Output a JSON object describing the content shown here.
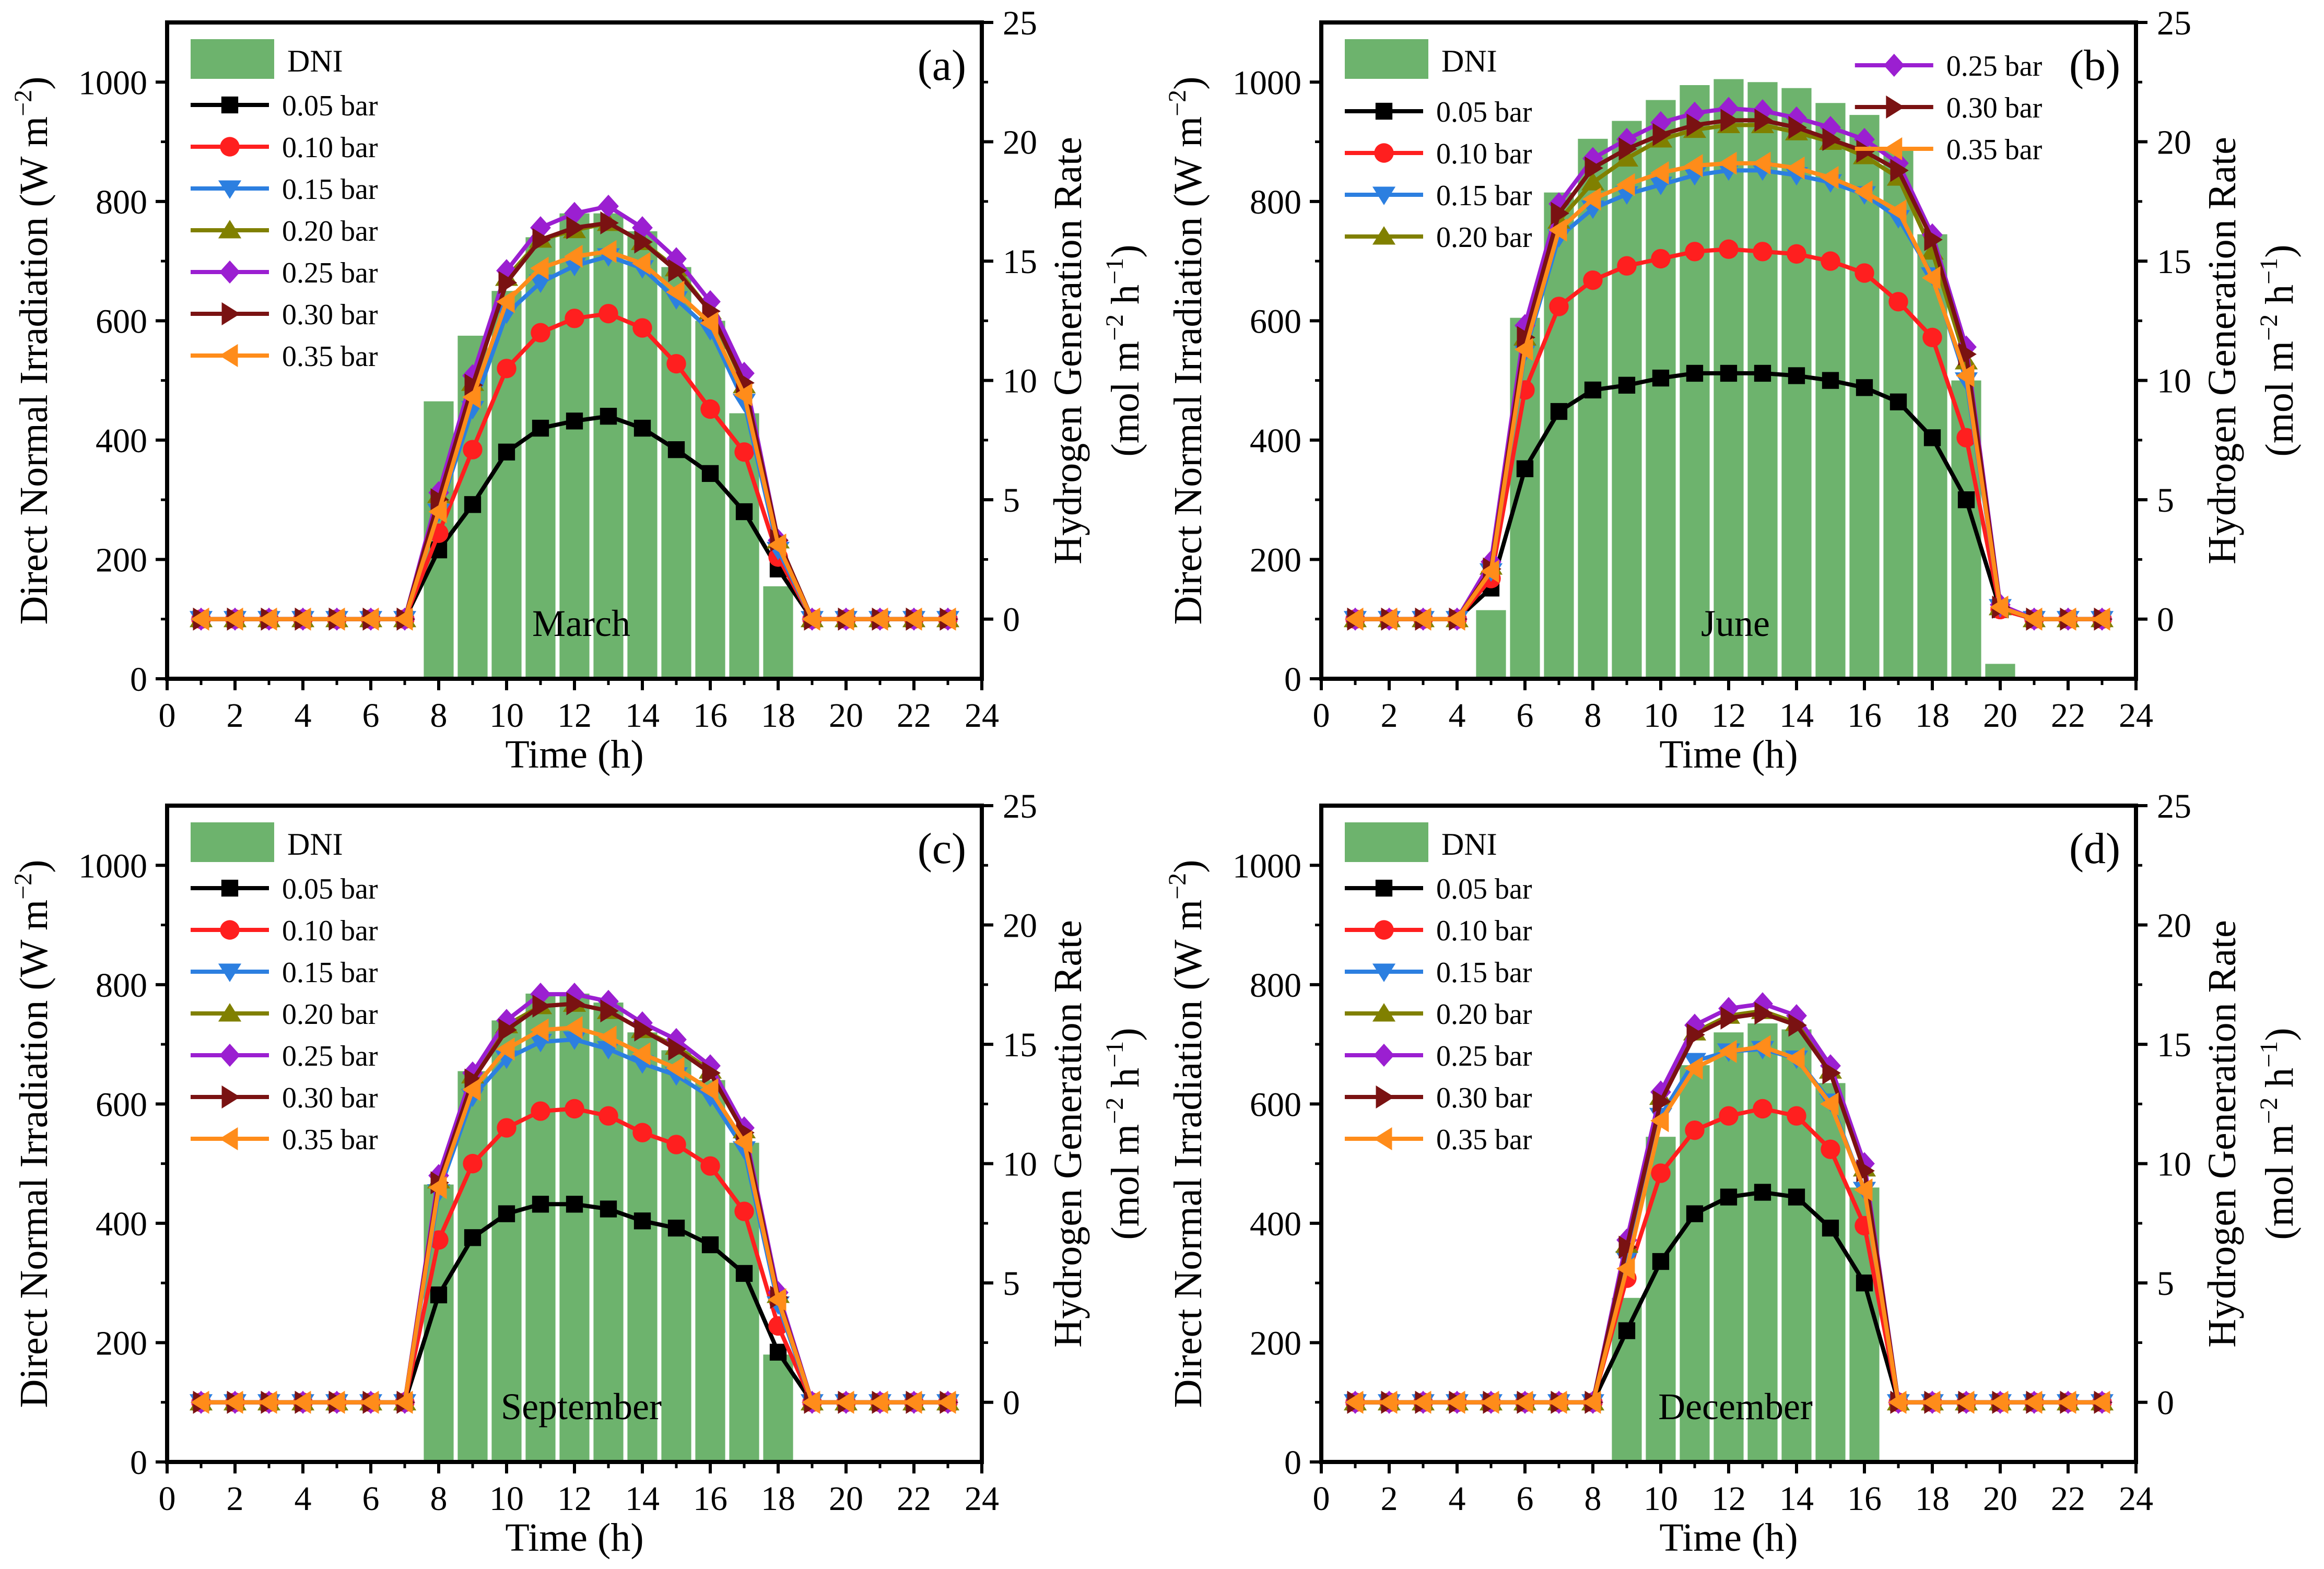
{
  "figure": {
    "x_label": "Time (h)",
    "y_label_left": "Direct Normal Irradiation (W m",
    "y_label_left_unit_exp": "−2",
    "y_label_left_close": ")",
    "y_label_right_line1": "Hydrogen Generation Rate",
    "y_label_right_line2_pre": "(mol m",
    "y_label_right_line2_exp1": "−2",
    "y_label_right_line2_mid": " h",
    "y_label_right_line2_exp2": "−1",
    "y_label_right_line2_post": ")"
  },
  "colors": {
    "dni_bar": "#6DB36D",
    "series": [
      "#000000",
      "#FF1F1F",
      "#2C7FE0",
      "#808000",
      "#9B1FD1",
      "#7A1212",
      "#FF8C1A"
    ]
  },
  "chart_data": [
    {
      "type": "bar+line",
      "panel": "(a)",
      "month": "March",
      "x_ticks": [
        0,
        2,
        4,
        6,
        8,
        10,
        12,
        14,
        16,
        18,
        20,
        22,
        24
      ],
      "xlim": [
        0,
        24
      ],
      "ylim_left": [
        0,
        1100
      ],
      "y_ticks_left": [
        0,
        200,
        400,
        600,
        800,
        1000
      ],
      "ylim_right": [
        -2.5,
        25
      ],
      "y_ticks_right": [
        0,
        5,
        10,
        15,
        20,
        25
      ],
      "dni": {
        "name": "DNI",
        "hours": [
          8,
          9,
          10,
          11,
          12,
          13,
          14,
          15,
          16,
          17,
          18
        ],
        "values": [
          465,
          575,
          650,
          740,
          780,
          780,
          750,
          690,
          600,
          445,
          155
        ]
      },
      "x": [
        1,
        2,
        3,
        4,
        5,
        6,
        7,
        8,
        9,
        10,
        11,
        12,
        13,
        14,
        15,
        16,
        17,
        18,
        19,
        20,
        21,
        22,
        23
      ],
      "series": [
        {
          "name": "0.05 bar",
          "marker": "square",
          "values": [
            0,
            0,
            0,
            0,
            0,
            0,
            0,
            2.9,
            4.8,
            7.0,
            8.0,
            8.3,
            8.5,
            8.0,
            7.1,
            6.1,
            4.5,
            2.1,
            0,
            0,
            0,
            0,
            0
          ]
        },
        {
          "name": "0.10 bar",
          "marker": "circle",
          "values": [
            0,
            0,
            0,
            0,
            0,
            0,
            0,
            3.6,
            7.1,
            10.5,
            12.0,
            12.6,
            12.8,
            12.2,
            10.7,
            8.8,
            7.0,
            2.6,
            0,
            0,
            0,
            0,
            0
          ]
        },
        {
          "name": "0.15 bar",
          "marker": "triangle-down",
          "values": [
            0,
            0,
            0,
            0,
            0,
            0,
            0,
            4.5,
            8.8,
            12.8,
            14.1,
            14.8,
            15.2,
            14.7,
            13.4,
            12.1,
            9.1,
            2.9,
            0,
            0,
            0,
            0,
            0
          ]
        },
        {
          "name": "0.20 bar",
          "marker": "triangle-up",
          "values": [
            0,
            0,
            0,
            0,
            0,
            0,
            0,
            5.2,
            9.9,
            14.3,
            15.9,
            16.3,
            16.6,
            15.8,
            14.7,
            12.9,
            9.8,
            3.3,
            0,
            0,
            0,
            0,
            0
          ]
        },
        {
          "name": "0.25 bar",
          "marker": "diamond",
          "values": [
            0,
            0,
            0,
            0,
            0,
            0,
            0,
            5.3,
            10.2,
            14.6,
            16.4,
            17.0,
            17.3,
            16.4,
            15.1,
            13.3,
            10.3,
            3.3,
            0,
            0,
            0,
            0,
            0
          ]
        },
        {
          "name": "0.30 bar",
          "marker": "triangle-right",
          "values": [
            0,
            0,
            0,
            0,
            0,
            0,
            0,
            5.0,
            9.8,
            14.1,
            15.9,
            16.4,
            16.6,
            15.8,
            14.6,
            12.9,
            9.9,
            3.3,
            0,
            0,
            0,
            0,
            0
          ]
        },
        {
          "name": "0.35 bar",
          "marker": "triangle-left",
          "values": [
            0,
            0,
            0,
            0,
            0,
            0,
            0,
            4.5,
            9.3,
            13.3,
            14.7,
            15.2,
            15.4,
            14.9,
            13.7,
            12.4,
            9.4,
            3.1,
            0,
            0,
            0,
            0,
            0
          ]
        }
      ]
    },
    {
      "type": "bar+line",
      "panel": "(b)",
      "month": "June",
      "x_ticks": [
        0,
        2,
        4,
        6,
        8,
        10,
        12,
        14,
        16,
        18,
        20,
        22,
        24
      ],
      "xlim": [
        0,
        24
      ],
      "ylim_left": [
        0,
        1100
      ],
      "y_ticks_left": [
        0,
        200,
        400,
        600,
        800,
        1000
      ],
      "ylim_right": [
        -2.5,
        25
      ],
      "y_ticks_right": [
        0,
        5,
        10,
        15,
        20,
        25
      ],
      "dni": {
        "name": "DNI",
        "hours": [
          5,
          6,
          7,
          8,
          9,
          10,
          11,
          12,
          13,
          14,
          15,
          16,
          17,
          18,
          19,
          20
        ],
        "values": [
          115,
          605,
          815,
          905,
          935,
          970,
          995,
          1005,
          1000,
          990,
          965,
          945,
          885,
          745,
          500,
          25
        ]
      },
      "x": [
        1,
        2,
        3,
        4,
        5,
        6,
        7,
        8,
        9,
        10,
        11,
        12,
        13,
        14,
        15,
        16,
        17,
        18,
        19,
        20,
        21,
        22,
        23
      ],
      "series": [
        {
          "name": "0.05 bar",
          "marker": "square",
          "values": [
            0,
            0,
            0,
            0,
            1.3,
            6.3,
            8.7,
            9.6,
            9.8,
            10.1,
            10.3,
            10.3,
            10.3,
            10.2,
            10.0,
            9.7,
            9.1,
            7.6,
            5.0,
            0.4,
            0,
            0,
            0
          ]
        },
        {
          "name": "0.10 bar",
          "marker": "circle",
          "values": [
            0,
            0,
            0,
            0,
            1.7,
            9.6,
            13.1,
            14.2,
            14.8,
            15.1,
            15.4,
            15.5,
            15.4,
            15.3,
            15.0,
            14.5,
            13.3,
            11.8,
            7.6,
            0.4,
            0,
            0,
            0
          ]
        },
        {
          "name": "0.15 bar",
          "marker": "triangle-down",
          "values": [
            0,
            0,
            0,
            0,
            2.0,
            11.2,
            16.0,
            17.2,
            17.8,
            18.2,
            18.6,
            18.8,
            18.8,
            18.6,
            18.3,
            17.8,
            16.8,
            14.4,
            10.0,
            0.5,
            0,
            0,
            0
          ]
        },
        {
          "name": "0.20 bar",
          "marker": "triangle-up",
          "values": [
            0,
            0,
            0,
            0,
            2.2,
            11.8,
            16.7,
            18.3,
            19.3,
            20.1,
            20.5,
            20.7,
            20.7,
            20.4,
            20.0,
            19.4,
            18.5,
            15.4,
            10.8,
            0.5,
            0,
            0,
            0
          ]
        },
        {
          "name": "0.25 bar",
          "marker": "diamond",
          "values": [
            0,
            0,
            0,
            0,
            2.4,
            12.3,
            17.4,
            19.3,
            20.1,
            20.8,
            21.2,
            21.4,
            21.3,
            21.0,
            20.6,
            20.1,
            19.1,
            16.1,
            11.4,
            0.6,
            0,
            0,
            0
          ]
        },
        {
          "name": "0.30 bar",
          "marker": "triangle-right",
          "values": [
            0,
            0,
            0,
            0,
            2.1,
            11.8,
            17.0,
            18.9,
            19.7,
            20.3,
            20.7,
            20.9,
            20.9,
            20.6,
            20.1,
            19.6,
            18.8,
            15.9,
            11.1,
            0.5,
            0,
            0,
            0
          ]
        },
        {
          "name": "0.35 bar",
          "marker": "triangle-left",
          "values": [
            0,
            0,
            0,
            0,
            2.0,
            11.3,
            16.3,
            17.6,
            18.2,
            18.7,
            19.0,
            19.1,
            19.1,
            18.9,
            18.5,
            17.9,
            17.1,
            14.3,
            10.2,
            0.5,
            0,
            0,
            0
          ]
        }
      ]
    },
    {
      "type": "bar+line",
      "panel": "(c)",
      "month": "September",
      "x_ticks": [
        0,
        2,
        4,
        6,
        8,
        10,
        12,
        14,
        16,
        18,
        20,
        22,
        24
      ],
      "xlim": [
        0,
        24
      ],
      "ylim_left": [
        0,
        1100
      ],
      "y_ticks_left": [
        0,
        200,
        400,
        600,
        800,
        1000
      ],
      "ylim_right": [
        -2.5,
        25
      ],
      "y_ticks_right": [
        0,
        5,
        10,
        15,
        20,
        25
      ],
      "dni": {
        "name": "DNI",
        "hours": [
          8,
          9,
          10,
          11,
          12,
          13,
          14,
          15,
          16,
          17,
          18
        ],
        "values": [
          465,
          655,
          740,
          785,
          785,
          770,
          720,
          690,
          640,
          535,
          180
        ]
      },
      "x": [
        1,
        2,
        3,
        4,
        5,
        6,
        7,
        8,
        9,
        10,
        11,
        12,
        13,
        14,
        15,
        16,
        17,
        18,
        19,
        20,
        21,
        22,
        23
      ],
      "series": [
        {
          "name": "0.05 bar",
          "marker": "square",
          "values": [
            0,
            0,
            0,
            0,
            0,
            0,
            0,
            4.5,
            6.9,
            7.9,
            8.3,
            8.3,
            8.1,
            7.6,
            7.3,
            6.6,
            5.4,
            2.1,
            0,
            0,
            0,
            0,
            0
          ]
        },
        {
          "name": "0.10 bar",
          "marker": "circle",
          "values": [
            0,
            0,
            0,
            0,
            0,
            0,
            0,
            6.8,
            10.0,
            11.5,
            12.2,
            12.3,
            12.0,
            11.3,
            10.8,
            9.9,
            8.0,
            3.2,
            0,
            0,
            0,
            0,
            0
          ]
        },
        {
          "name": "0.15 bar",
          "marker": "triangle-down",
          "values": [
            0,
            0,
            0,
            0,
            0,
            0,
            0,
            8.8,
            12.8,
            14.4,
            15.1,
            15.2,
            14.8,
            14.2,
            13.7,
            12.8,
            10.6,
            4.1,
            0,
            0,
            0,
            0,
            0
          ]
        },
        {
          "name": "0.20 bar",
          "marker": "triangle-up",
          "values": [
            0,
            0,
            0,
            0,
            0,
            0,
            0,
            9.3,
            13.7,
            15.8,
            16.6,
            16.7,
            16.4,
            15.6,
            14.9,
            13.9,
            11.4,
            4.5,
            0,
            0,
            0,
            0,
            0
          ]
        },
        {
          "name": "0.25 bar",
          "marker": "diamond",
          "values": [
            0,
            0,
            0,
            0,
            0,
            0,
            0,
            9.5,
            13.8,
            16.0,
            17.1,
            17.1,
            16.8,
            15.9,
            15.2,
            14.1,
            11.5,
            4.6,
            0,
            0,
            0,
            0,
            0
          ]
        },
        {
          "name": "0.30 bar",
          "marker": "triangle-right",
          "values": [
            0,
            0,
            0,
            0,
            0,
            0,
            0,
            9.2,
            13.5,
            15.6,
            16.6,
            16.7,
            16.4,
            15.6,
            14.8,
            13.8,
            11.3,
            4.4,
            0,
            0,
            0,
            0,
            0
          ]
        },
        {
          "name": "0.35 bar",
          "marker": "triangle-left",
          "values": [
            0,
            0,
            0,
            0,
            0,
            0,
            0,
            9.0,
            13.1,
            14.8,
            15.6,
            15.7,
            15.3,
            14.6,
            14.0,
            13.1,
            10.9,
            4.3,
            0,
            0,
            0,
            0,
            0
          ]
        }
      ]
    },
    {
      "type": "bar+line",
      "panel": "(d)",
      "month": "December",
      "x_ticks": [
        0,
        2,
        4,
        6,
        8,
        10,
        12,
        14,
        16,
        18,
        20,
        22,
        24
      ],
      "xlim": [
        0,
        24
      ],
      "ylim_left": [
        0,
        1100
      ],
      "y_ticks_left": [
        0,
        200,
        400,
        600,
        800,
        1000
      ],
      "ylim_right": [
        -2.5,
        25
      ],
      "y_ticks_right": [
        0,
        5,
        10,
        15,
        20,
        25
      ],
      "dni": {
        "name": "DNI",
        "hours": [
          9,
          10,
          11,
          12,
          13,
          14,
          15,
          16
        ],
        "values": [
          275,
          545,
          665,
          720,
          735,
          725,
          635,
          460
        ]
      },
      "x": [
        1,
        2,
        3,
        4,
        5,
        6,
        7,
        8,
        9,
        10,
        11,
        12,
        13,
        14,
        15,
        16,
        17,
        18,
        19,
        20,
        21,
        22,
        23
      ],
      "series": [
        {
          "name": "0.05 bar",
          "marker": "square",
          "values": [
            0,
            0,
            0,
            0,
            0,
            0,
            0,
            0,
            3.0,
            5.9,
            7.9,
            8.6,
            8.8,
            8.6,
            7.3,
            5.0,
            0,
            0,
            0,
            0,
            0,
            0,
            0
          ]
        },
        {
          "name": "0.10 bar",
          "marker": "circle",
          "values": [
            0,
            0,
            0,
            0,
            0,
            0,
            0,
            0,
            5.2,
            9.6,
            11.4,
            12.0,
            12.3,
            12.0,
            10.6,
            7.4,
            0,
            0,
            0,
            0,
            0,
            0,
            0
          ]
        },
        {
          "name": "0.15 bar",
          "marker": "triangle-down",
          "values": [
            0,
            0,
            0,
            0,
            0,
            0,
            0,
            0,
            6.0,
            12.0,
            14.3,
            14.7,
            14.8,
            14.4,
            12.6,
            8.9,
            0,
            0,
            0,
            0,
            0,
            0,
            0
          ]
        },
        {
          "name": "0.20 bar",
          "marker": "triangle-up",
          "values": [
            0,
            0,
            0,
            0,
            0,
            0,
            0,
            0,
            6.6,
            12.8,
            15.5,
            16.2,
            16.4,
            15.9,
            13.9,
            9.8,
            0,
            0,
            0,
            0,
            0,
            0,
            0
          ]
        },
        {
          "name": "0.25 bar",
          "marker": "diamond",
          "values": [
            0,
            0,
            0,
            0,
            0,
            0,
            0,
            0,
            6.8,
            13.0,
            15.8,
            16.5,
            16.7,
            16.2,
            14.1,
            10.0,
            0,
            0,
            0,
            0,
            0,
            0,
            0
          ]
        },
        {
          "name": "0.30 bar",
          "marker": "triangle-right",
          "values": [
            0,
            0,
            0,
            0,
            0,
            0,
            0,
            0,
            6.5,
            12.6,
            15.4,
            16.1,
            16.3,
            15.8,
            13.8,
            9.7,
            0,
            0,
            0,
            0,
            0,
            0,
            0
          ]
        },
        {
          "name": "0.35 bar",
          "marker": "triangle-left",
          "values": [
            0,
            0,
            0,
            0,
            0,
            0,
            0,
            0,
            5.6,
            11.8,
            14.0,
            14.7,
            14.9,
            14.4,
            12.5,
            8.9,
            0,
            0,
            0,
            0,
            0,
            0,
            0
          ]
        }
      ]
    }
  ]
}
